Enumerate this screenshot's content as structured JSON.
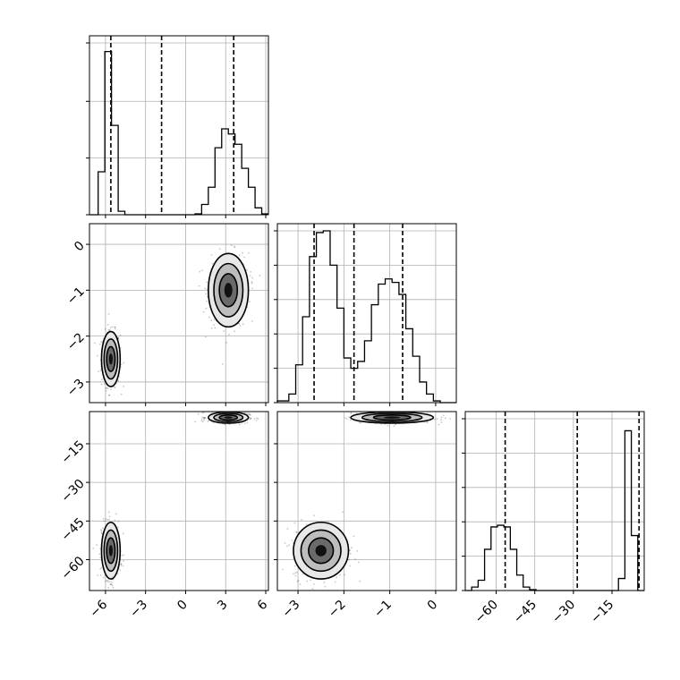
{
  "chart_data": {
    "type": "corner",
    "parameters": [
      {
        "name": "",
        "range": [
          -7.2,
          6.2
        ],
        "ticks": [
          -6,
          -3,
          0,
          3,
          6
        ],
        "tick_labels": [
          "−6",
          "−3",
          "0",
          "3",
          "6"
        ],
        "quantiles": [
          -5.6,
          -1.8,
          3.6
        ],
        "histogram": {
          "bins": [
            -7.2,
            -6.55,
            -6.05,
            -5.55,
            -5.05,
            -4.55,
            -4.05,
            -3.55,
            0.7,
            1.2,
            1.7,
            2.2,
            2.7,
            3.2,
            3.7,
            4.2,
            4.7,
            5.2,
            5.7,
            6.2
          ],
          "counts": [
            0,
            0.25,
            0.95,
            0.52,
            0.02,
            0,
            0,
            0,
            0.005,
            0.06,
            0.16,
            0.39,
            0.5,
            0.47,
            0.41,
            0.27,
            0.16,
            0.04,
            0.005
          ]
        },
        "histogram_yticks": [
          0,
          0.33,
          0.66,
          1.0
        ]
      },
      {
        "name": "",
        "range": [
          -3.45,
          0.45
        ],
        "ticks": [
          -3,
          -2,
          -1,
          0
        ],
        "tick_labels": [
          "−3",
          "−2",
          "−1",
          "0"
        ],
        "quantiles": [
          -2.65,
          -1.78,
          -0.72
        ],
        "histogram": {
          "bins": [
            -3.45,
            -3.2,
            -3.05,
            -2.9,
            -2.75,
            -2.6,
            -2.45,
            -2.3,
            -2.15,
            -2.0,
            -1.85,
            -1.7,
            -1.55,
            -1.4,
            -1.25,
            -1.1,
            -0.95,
            -0.8,
            -0.65,
            -0.5,
            -0.35,
            -0.2,
            -0.05,
            0.1,
            0.45
          ],
          "counts": [
            0.01,
            0.05,
            0.22,
            0.5,
            0.85,
            0.99,
            1.0,
            0.8,
            0.55,
            0.26,
            0.2,
            0.24,
            0.36,
            0.57,
            0.69,
            0.72,
            0.7,
            0.63,
            0.43,
            0.27,
            0.12,
            0.05,
            0.01,
            0
          ]
        },
        "histogram_yticks": [
          0,
          0.2,
          0.4,
          0.6,
          0.8,
          1.0
        ]
      },
      {
        "name": "",
        "range": [
          -72,
          -2.5
        ],
        "ticks": [
          -60,
          -45,
          -30,
          -15
        ],
        "tick_labels": [
          "−60",
          "−45",
          "−30",
          "−15"
        ],
        "quantiles": [
          -56.5,
          -28.5,
          -4.5
        ],
        "histogram": {
          "bins": [
            -72,
            -69.5,
            -67,
            -64.5,
            -62,
            -59.5,
            -57,
            -54.5,
            -52,
            -49.5,
            -47,
            -44.5,
            -42,
            -39.5,
            -37,
            -12.5,
            -10,
            -7.5,
            -5,
            -2.5
          ],
          "counts": [
            0,
            0.02,
            0.06,
            0.24,
            0.37,
            0.38,
            0.37,
            0.24,
            0.09,
            0.02,
            0.005,
            0,
            0,
            0,
            0,
            0.07,
            0.93,
            0.32,
            0
          ]
        },
        "histogram_yticks": [
          0,
          0.2,
          0.4,
          0.6,
          0.8,
          1.0
        ]
      }
    ],
    "joint_clusters": [
      {
        "pair": [
          0,
          1
        ],
        "centers": [
          [
            -5.6,
            -2.5
          ],
          [
            3.2,
            -1.0
          ]
        ],
        "spread": [
          [
            0.35,
            0.3
          ],
          [
            0.75,
            0.4
          ]
        ]
      },
      {
        "pair": [
          0,
          2
        ],
        "centers": [
          [
            -5.6,
            -56.5
          ],
          [
            3.2,
            -4.8
          ]
        ],
        "spread": [
          [
            0.35,
            5.5
          ],
          [
            0.75,
            1.1
          ]
        ]
      },
      {
        "pair": [
          1,
          2
        ],
        "centers": [
          [
            -2.5,
            -56.5
          ],
          [
            -0.95,
            -4.8
          ]
        ],
        "spread": [
          [
            0.3,
            5.5
          ],
          [
            0.45,
            1.1
          ]
        ]
      }
    ],
    "grid": true,
    "title": "",
    "xlabel": "",
    "ylabel": ""
  }
}
